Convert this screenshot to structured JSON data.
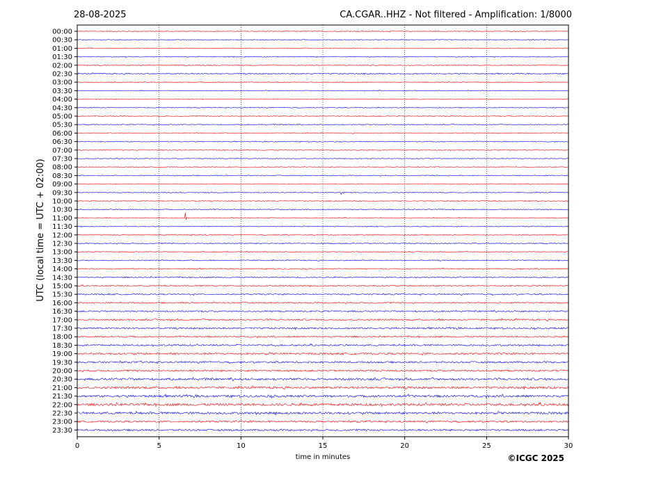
{
  "header": {
    "date": "28-08-2025",
    "title": "CA.CGAR..HHZ - Not filtered - Amplification: 1/8000"
  },
  "footer": {
    "copyright": "©ICGC 2025"
  },
  "colors": {
    "trace_even": "#ff0000",
    "trace_odd": "#0000ff",
    "grid": "#000000",
    "axes": "#000000"
  },
  "chart_data": {
    "type": "line",
    "xlabel": "time in minutes",
    "ylabel": "UTC (local time = UTC + 02:00)",
    "xlim": [
      0,
      30
    ],
    "xticks": [
      0,
      5,
      10,
      15,
      20,
      25,
      30
    ],
    "grid": "vertical dotted at major x ticks",
    "rows": [
      "00:00",
      "00:30",
      "01:00",
      "01:30",
      "02:00",
      "02:30",
      "03:00",
      "03:30",
      "04:00",
      "04:30",
      "05:00",
      "05:30",
      "06:00",
      "06:30",
      "07:00",
      "07:30",
      "08:00",
      "08:30",
      "09:00",
      "09:30",
      "10:00",
      "10:30",
      "11:00",
      "11:30",
      "12:00",
      "12:30",
      "13:00",
      "13:30",
      "14:00",
      "14:30",
      "15:00",
      "15:30",
      "16:00",
      "16:30",
      "17:00",
      "17:30",
      "18:00",
      "18:30",
      "19:00",
      "19:30",
      "20:00",
      "20:30",
      "21:00",
      "21:30",
      "22:00",
      "22:30",
      "23:00",
      "23:30"
    ],
    "noise_level": [
      0.5,
      0.5,
      0.5,
      0.6,
      0.6,
      0.8,
      0.5,
      0.5,
      0.5,
      0.5,
      0.6,
      0.6,
      0.6,
      0.6,
      0.5,
      0.5,
      0.5,
      0.6,
      0.5,
      0.6,
      0.6,
      0.6,
      0.6,
      0.6,
      0.6,
      0.7,
      0.6,
      0.7,
      0.7,
      0.8,
      0.8,
      0.9,
      0.9,
      1.0,
      1.1,
      1.1,
      1.0,
      1.1,
      1.3,
      1.2,
      1.2,
      1.5,
      1.5,
      1.6,
      1.7,
      1.6,
      1.2,
      1.2
    ],
    "events": [
      {
        "row": "09:30",
        "minute": 16.1,
        "amplitude": 6
      },
      {
        "row": "11:00",
        "minute": 6.6,
        "amplitude": 9
      }
    ]
  }
}
